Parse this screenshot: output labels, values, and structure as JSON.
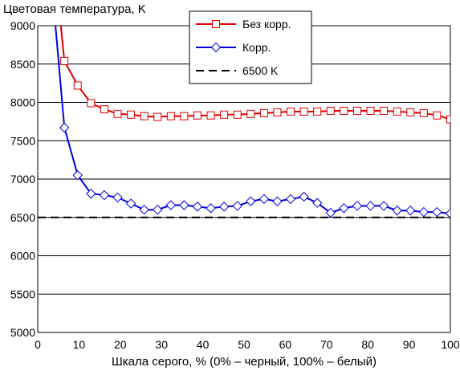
{
  "chart_data": {
    "type": "line",
    "title": "Цветовая температура, K",
    "xlabel": "Шкала серого, % (0% – черный, 100% – белый)",
    "ylabel": "",
    "xlim": [
      0,
      100
    ],
    "ylim": [
      5000,
      9000
    ],
    "x_ticks": [
      "0",
      "10",
      "20",
      "30",
      "40",
      "50",
      "60",
      "70",
      "80",
      "90",
      "100"
    ],
    "y_ticks": [
      "5000",
      "5500",
      "6000",
      "6500",
      "7000",
      "7500",
      "8000",
      "8500",
      "9000"
    ],
    "grid": "horizontal",
    "legend_position": "top-center",
    "series": [
      {
        "name": "Без корр.",
        "color": "#e00000",
        "marker": "square",
        "x": [
          5.6,
          6.45,
          9.68,
          12.9,
          16.13,
          19.35,
          22.58,
          25.81,
          29.03,
          32.26,
          35.48,
          38.71,
          41.94,
          45.16,
          48.39,
          51.61,
          54.84,
          58.06,
          61.29,
          64.52,
          67.74,
          70.97,
          74.19,
          77.42,
          80.65,
          83.87,
          87.1,
          90.32,
          93.55,
          96.77,
          100
        ],
        "y": [
          9000,
          8540,
          8220,
          7990,
          7910,
          7850,
          7840,
          7820,
          7810,
          7820,
          7820,
          7830,
          7830,
          7840,
          7840,
          7850,
          7860,
          7870,
          7880,
          7880,
          7880,
          7890,
          7890,
          7890,
          7890,
          7890,
          7880,
          7870,
          7860,
          7830,
          7780
        ]
      },
      {
        "name": "Корр.",
        "color": "#0000e0",
        "marker": "diamond",
        "x": [
          4.3,
          6.45,
          9.68,
          12.9,
          16.13,
          19.35,
          22.58,
          25.81,
          29.03,
          32.26,
          35.48,
          38.71,
          41.94,
          45.16,
          48.39,
          51.61,
          54.84,
          58.06,
          61.29,
          64.52,
          67.74,
          70.97,
          74.19,
          77.42,
          80.65,
          83.87,
          87.1,
          90.32,
          93.55,
          96.77,
          100
        ],
        "y": [
          9000,
          7670,
          7050,
          6810,
          6790,
          6760,
          6680,
          6600,
          6600,
          6660,
          6660,
          6640,
          6620,
          6640,
          6650,
          6710,
          6740,
          6710,
          6740,
          6770,
          6690,
          6560,
          6620,
          6650,
          6650,
          6650,
          6590,
          6590,
          6570,
          6570,
          6550
        ]
      },
      {
        "name": "6500 K",
        "color": "#000000",
        "marker": "none",
        "dash": true,
        "x": [
          0,
          100
        ],
        "y": [
          6500,
          6500
        ]
      }
    ]
  }
}
